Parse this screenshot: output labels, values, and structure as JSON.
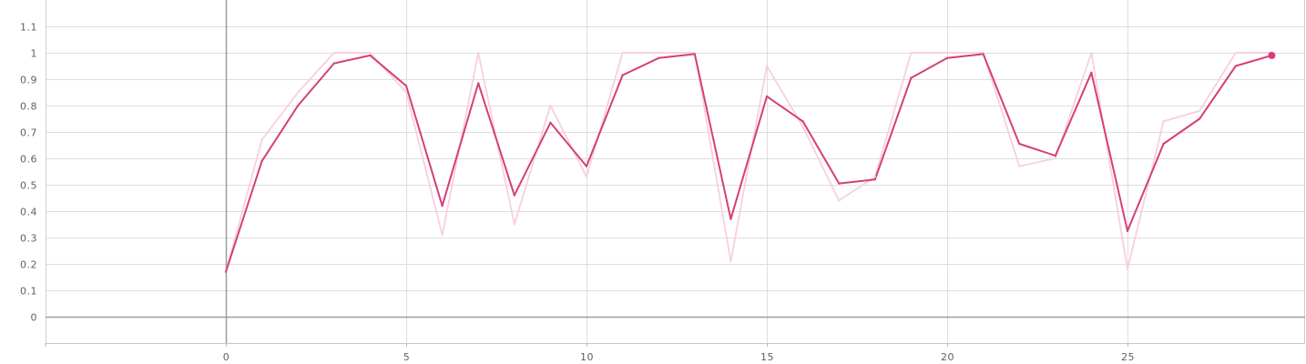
{
  "chart_data": {
    "type": "line",
    "title": "",
    "xlabel": "",
    "ylabel": "",
    "xlim": [
      -5,
      30
    ],
    "ylim": [
      -0.1,
      1.2
    ],
    "x_ticks": [
      0,
      5,
      10,
      15,
      20,
      25
    ],
    "y_ticks": [
      0,
      0.1,
      0.2,
      0.3,
      0.4,
      0.5,
      0.6,
      0.7,
      0.8,
      0.9,
      1,
      1.1
    ],
    "x_tick_labels": [
      "0",
      "5",
      "10",
      "15",
      "20",
      "25"
    ],
    "y_tick_labels": [
      "0",
      "0.1",
      "0.2",
      "0.3",
      "0.4",
      "0.5",
      "0.6",
      "0.7",
      "0.8",
      "0.9",
      "1",
      "1.1"
    ],
    "grid": true,
    "x": [
      0,
      1,
      2,
      3,
      4,
      5,
      6,
      7,
      8,
      9,
      10,
      11,
      12,
      13,
      14,
      15,
      16,
      17,
      18,
      19,
      20,
      21,
      22,
      23,
      24,
      25,
      26,
      27,
      28,
      29
    ],
    "series": [
      {
        "role": "raw",
        "color": "#f8cfe0",
        "values": [
          0.17,
          0.67,
          0.85,
          1.0,
          1.0,
          0.85,
          0.31,
          1.0,
          0.35,
          0.8,
          0.53,
          1.0,
          1.0,
          1.0,
          0.21,
          0.95,
          0.72,
          0.44,
          0.53,
          1.0,
          1.0,
          1.0,
          0.57,
          0.6,
          1.0,
          0.18,
          0.74,
          0.78,
          1.0,
          1.0
        ]
      },
      {
        "role": "smoothed",
        "color": "#d63e7b",
        "values": [
          0.17,
          0.59,
          0.8,
          0.96,
          0.99,
          0.875,
          0.42,
          0.885,
          0.46,
          0.735,
          0.57,
          0.915,
          0.98,
          0.995,
          0.37,
          0.835,
          0.74,
          0.505,
          0.52,
          0.905,
          0.98,
          0.995,
          0.655,
          0.61,
          0.925,
          0.325,
          0.655,
          0.75,
          0.95,
          0.99
        ]
      }
    ]
  }
}
